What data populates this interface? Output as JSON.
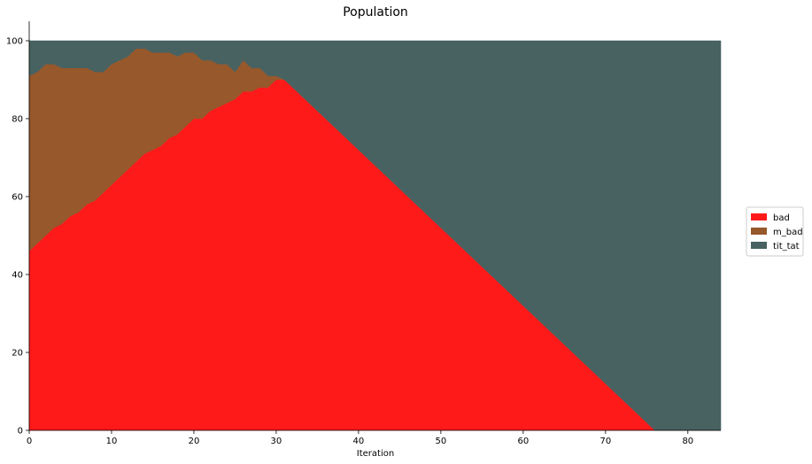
{
  "chart_data": {
    "type": "area",
    "stacked": true,
    "title": "Population",
    "xlabel": "Iteration",
    "ylabel": "",
    "xlim": [
      0,
      84
    ],
    "ylim": [
      0,
      105
    ],
    "xticks": [
      0,
      10,
      20,
      30,
      40,
      50,
      60,
      70,
      80
    ],
    "yticks": [
      0,
      20,
      40,
      60,
      80,
      100
    ],
    "grid": false,
    "legend_position": "right",
    "x": [
      0,
      1,
      2,
      3,
      4,
      5,
      6,
      7,
      8,
      9,
      10,
      11,
      12,
      13,
      14,
      15,
      16,
      17,
      18,
      19,
      20,
      21,
      22,
      23,
      24,
      25,
      26,
      27,
      28,
      29,
      30,
      31,
      32,
      33,
      34,
      35,
      36,
      37,
      38,
      39,
      40,
      41,
      42,
      43,
      44,
      45,
      46,
      47,
      48,
      49,
      50,
      51,
      52,
      53,
      54,
      55,
      56,
      57,
      58,
      59,
      60,
      61,
      62,
      63,
      64,
      65,
      66,
      67,
      68,
      69,
      70,
      71,
      72,
      73,
      74,
      75,
      76,
      77,
      78,
      79,
      80,
      81,
      82,
      83,
      84
    ],
    "series": [
      {
        "name": "bad",
        "color": "#ff1a1a",
        "values": [
          46,
          48,
          50,
          52,
          53,
          55,
          56,
          58,
          59,
          61,
          63,
          65,
          67,
          69,
          71,
          72,
          73,
          75,
          76,
          78,
          80,
          80,
          82,
          83,
          84,
          85,
          87,
          87,
          88,
          88,
          90,
          90,
          88,
          86,
          84,
          82,
          80,
          78,
          76,
          74,
          72,
          70,
          68,
          66,
          64,
          62,
          60,
          58,
          56,
          54,
          52,
          50,
          48,
          46,
          44,
          42,
          40,
          38,
          36,
          34,
          32,
          30,
          28,
          26,
          24,
          22,
          20,
          18,
          16,
          14,
          12,
          10,
          8,
          6,
          4,
          2,
          0,
          0,
          0,
          0,
          0,
          0,
          0,
          0,
          0
        ]
      },
      {
        "name": "m_bad",
        "color": "#97582b",
        "values": [
          45,
          44,
          44,
          42,
          40,
          38,
          37,
          35,
          33,
          31,
          31,
          30,
          29,
          29,
          27,
          25,
          24,
          22,
          20,
          19,
          17,
          15,
          13,
          11,
          10,
          7,
          8,
          6,
          5,
          3,
          1,
          0,
          0,
          0,
          0,
          0,
          0,
          0,
          0,
          0,
          0,
          0,
          0,
          0,
          0,
          0,
          0,
          0,
          0,
          0,
          0,
          0,
          0,
          0,
          0,
          0,
          0,
          0,
          0,
          0,
          0,
          0,
          0,
          0,
          0,
          0,
          0,
          0,
          0,
          0,
          0,
          0,
          0,
          0,
          0,
          0,
          0,
          0,
          0,
          0,
          0,
          0,
          0,
          0,
          0
        ]
      },
      {
        "name": "tit_tat",
        "color": "#486262",
        "values": [
          9,
          8,
          6,
          6,
          7,
          7,
          7,
          7,
          8,
          8,
          6,
          5,
          4,
          2,
          2,
          3,
          3,
          3,
          4,
          3,
          3,
          5,
          5,
          6,
          6,
          8,
          5,
          7,
          7,
          9,
          9,
          10,
          12,
          14,
          16,
          18,
          20,
          22,
          24,
          26,
          28,
          30,
          32,
          34,
          36,
          38,
          40,
          42,
          44,
          46,
          48,
          50,
          52,
          54,
          56,
          58,
          60,
          62,
          64,
          66,
          68,
          70,
          72,
          74,
          76,
          78,
          80,
          82,
          84,
          86,
          88,
          90,
          92,
          94,
          96,
          98,
          100,
          100,
          100,
          100,
          100,
          100,
          100,
          100,
          100
        ]
      }
    ]
  }
}
